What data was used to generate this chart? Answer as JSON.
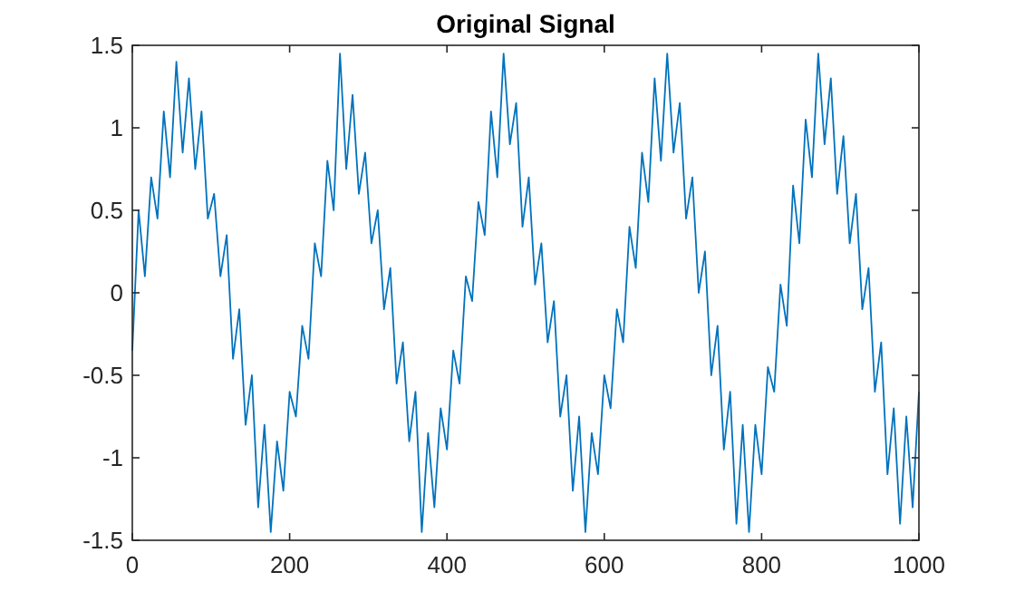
{
  "chart_data": {
    "type": "line",
    "title": "Original Signal",
    "xlim": [
      0,
      1000
    ],
    "xticks": [
      0,
      200,
      400,
      600,
      800,
      1000
    ],
    "ylim": [
      -1.5,
      1.5
    ],
    "yticks": [
      -1.5,
      -1,
      -0.5,
      0,
      0.5,
      1,
      1.5
    ],
    "grid": false,
    "marker": "none",
    "line_style": "solid",
    "x": [
      0,
      8,
      16,
      24,
      32,
      40,
      48,
      56,
      64,
      72,
      80,
      88,
      96,
      104,
      112,
      120,
      128,
      136,
      144,
      152,
      160,
      168,
      176,
      184,
      192,
      200,
      208,
      216,
      224,
      232,
      240,
      248,
      256,
      264,
      272,
      280,
      288,
      296,
      304,
      312,
      320,
      328,
      336,
      344,
      352,
      360,
      368,
      376,
      384,
      392,
      400,
      408,
      416,
      424,
      432,
      440,
      448,
      456,
      464,
      472,
      480,
      488,
      496,
      504,
      512,
      520,
      528,
      536,
      544,
      552,
      560,
      568,
      576,
      584,
      592,
      600,
      608,
      616,
      624,
      632,
      640,
      648,
      656,
      664,
      672,
      680,
      688,
      696,
      704,
      712,
      720,
      728,
      736,
      744,
      752,
      760,
      768,
      776,
      784,
      792,
      800,
      808,
      816,
      824,
      832,
      840,
      848,
      856,
      864,
      872,
      880,
      888,
      896,
      904,
      912,
      920,
      928,
      936,
      944,
      952,
      960,
      968,
      976,
      984,
      992,
      1000
    ],
    "series": [
      {
        "color": "#0072bd",
        "values": [
          -0.35,
          0.5,
          0.1,
          0.7,
          0.45,
          1.1,
          0.7,
          1.4,
          0.85,
          1.3,
          0.75,
          1.1,
          0.45,
          0.6,
          0.1,
          0.35,
          -0.4,
          -0.1,
          -0.8,
          -0.5,
          -1.3,
          -0.8,
          -1.45,
          -0.9,
          -1.2,
          -0.6,
          -0.75,
          -0.2,
          -0.4,
          0.3,
          0.1,
          0.8,
          0.5,
          1.45,
          0.75,
          1.2,
          0.6,
          0.85,
          0.3,
          0.5,
          -0.1,
          0.15,
          -0.55,
          -0.3,
          -0.9,
          -0.6,
          -1.45,
          -0.85,
          -1.3,
          -0.7,
          -0.95,
          -0.35,
          -0.55,
          0.1,
          -0.05,
          0.55,
          0.35,
          1.1,
          0.7,
          1.45,
          0.9,
          1.15,
          0.4,
          0.7,
          0.05,
          0.3,
          -0.3,
          -0.05,
          -0.75,
          -0.5,
          -1.2,
          -0.75,
          -1.45,
          -0.85,
          -1.1,
          -0.5,
          -0.7,
          -0.1,
          -0.3,
          0.4,
          0.15,
          0.85,
          0.55,
          1.3,
          0.8,
          1.45,
          0.85,
          1.15,
          0.45,
          0.7,
          0.0,
          0.25,
          -0.5,
          -0.2,
          -0.95,
          -0.6,
          -1.4,
          -0.8,
          -1.45,
          -0.8,
          -1.1,
          -0.45,
          -0.6,
          0.05,
          -0.2,
          0.65,
          0.3,
          1.05,
          0.7,
          1.45,
          0.9,
          1.3,
          0.6,
          0.95,
          0.3,
          0.6,
          -0.1,
          0.15,
          -0.6,
          -0.3,
          -1.1,
          -0.7,
          -1.4,
          -0.75,
          -1.3,
          -0.6
        ]
      }
    ]
  }
}
